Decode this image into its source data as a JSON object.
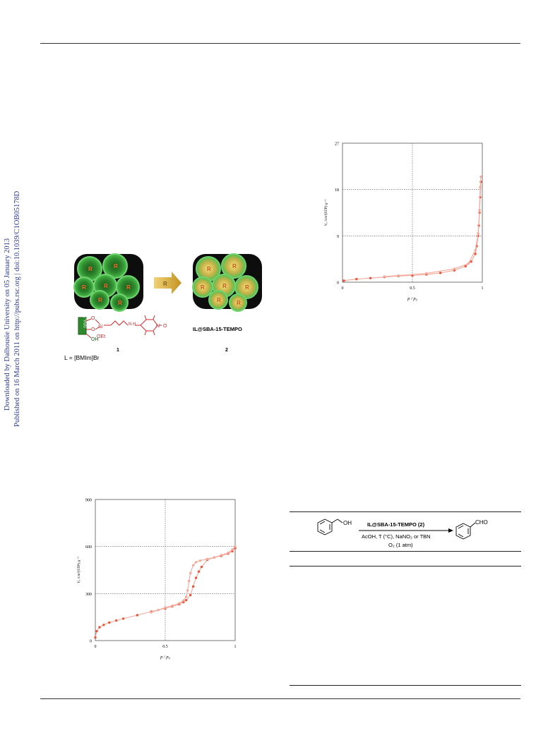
{
  "sidebar": {
    "line1": "Downloaded by Dalhousie University on 05 January 2013",
    "line2": "Published on 16 March 2011 on http://pubs.rsc.org | doi:10.1039/C1OB05178D"
  },
  "scheme": {
    "group_label": "R",
    "arrow_label": "R",
    "support_label": "SBA-15",
    "si_label": "Si",
    "oet_label": "OEt",
    "oh_label": "OH",
    "o_label": "O",
    "nh_label": "N\nH",
    "n_label": "N",
    "nitroxide_label": "O",
    "compound1_num": "1",
    "compound2_num": "2",
    "compound2_name": "IL@SBA-15-TEMPO",
    "ligand_def": "L = [BMIm]Br"
  },
  "colors": {
    "series_color": "#e8553a",
    "series_light": "#f4a89a",
    "sphere_green": "#3aa83a",
    "arrow_gold": "#d4a832",
    "sidebar_blue": "#2d3a8c",
    "tempo_red": "#cc2a2a"
  },
  "chart_data": [
    {
      "id": "chart_top",
      "type": "line",
      "title": "",
      "xlabel": "p / p₀",
      "ylabel": "Vₐ /cm³(STP) g⁻¹",
      "xlim": [
        0,
        1
      ],
      "ylim": [
        0,
        27
      ],
      "x_ticks": [
        0,
        0.5,
        1
      ],
      "x_tick_labels": [
        "0",
        "0.5",
        "1"
      ],
      "y_ticks": [
        0,
        9,
        18,
        27
      ],
      "y_tick_labels": [
        "0",
        "9",
        "18",
        "27"
      ],
      "grid": true,
      "series": [
        {
          "x": [
            0.01,
            0.1,
            0.2,
            0.3,
            0.4,
            0.5,
            0.6,
            0.7,
            0.8,
            0.88,
            0.92,
            0.95,
            0.96,
            0.97,
            0.975,
            0.98,
            0.985,
            0.99
          ],
          "y": [
            0.3,
            0.6,
            0.8,
            1.0,
            1.2,
            1.3,
            1.5,
            1.8,
            2.3,
            3.1,
            4.0,
            5.5,
            7.0,
            9.0,
            11.0,
            13.5,
            16.5,
            19.5
          ]
        },
        {
          "x": [
            0.99,
            0.985,
            0.98,
            0.97,
            0.95,
            0.9,
            0.8,
            0.6,
            0.4,
            0.3
          ],
          "y": [
            20.5,
            18.5,
            14.0,
            9.5,
            6.2,
            3.6,
            2.6,
            1.7,
            1.3,
            1.1
          ]
        }
      ]
    },
    {
      "id": "chart_bottom",
      "type": "line",
      "title": "",
      "xlabel": "p / p₀",
      "ylabel": "Vₐ /cm³(STP) g⁻¹",
      "xlim": [
        0,
        1
      ],
      "ylim": [
        0,
        900
      ],
      "x_ticks": [
        0,
        0.5,
        1
      ],
      "x_tick_labels": [
        "0",
        "0.5",
        "1"
      ],
      "y_ticks": [
        0,
        300,
        600,
        900
      ],
      "y_tick_labels": [
        "0",
        "300",
        "600",
        "900"
      ],
      "grid": true,
      "series": [
        {
          "x": [
            0.0,
            0.01,
            0.03,
            0.06,
            0.1,
            0.15,
            0.2,
            0.3,
            0.4,
            0.5,
            0.55,
            0.6,
            0.63,
            0.65,
            0.68,
            0.7,
            0.72,
            0.74,
            0.76,
            0.8,
            0.85,
            0.9,
            0.95,
            0.98,
            1.0
          ],
          "y": [
            20,
            60,
            85,
            100,
            115,
            128,
            140,
            162,
            185,
            205,
            218,
            232,
            245,
            258,
            290,
            345,
            400,
            440,
            470,
            515,
            530,
            540,
            555,
            570,
            590
          ]
        },
        {
          "x": [
            1.0,
            0.98,
            0.95,
            0.9,
            0.85,
            0.8,
            0.75,
            0.72,
            0.7,
            0.68,
            0.67,
            0.66,
            0.65,
            0.63,
            0.6,
            0.55,
            0.5,
            0.45,
            0.4
          ],
          "y": [
            600,
            580,
            560,
            545,
            530,
            520,
            510,
            500,
            480,
            430,
            380,
            320,
            280,
            255,
            238,
            222,
            210,
            195,
            180
          ]
        }
      ]
    }
  ],
  "reaction": {
    "reactant_oh": "OH",
    "catalyst": "IL@SBA-15-TEMPO (2)",
    "conditions_1": "AcOH, T (°C), NaNO₂ or TBN",
    "conditions_2": "O₂ (1 atm)",
    "product_cho": "CHO"
  }
}
